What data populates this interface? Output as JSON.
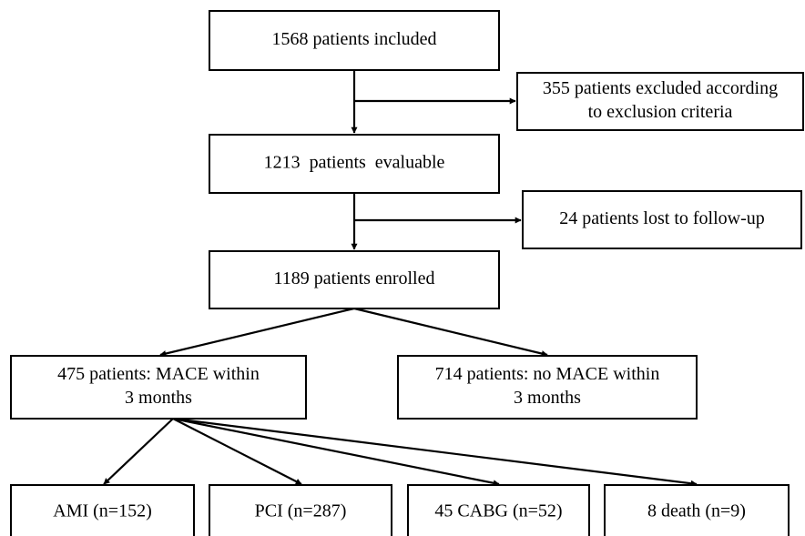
{
  "nodes": [
    {
      "lines": [
        "1568 patients included"
      ]
    },
    {
      "lines": [
        "355 patients excluded according",
        "to exclusion criteria"
      ]
    },
    {
      "lines": [
        "1213  patients  evaluable"
      ]
    },
    {
      "lines": [
        "24 patients lost to follow-up"
      ]
    },
    {
      "lines": [
        "1189 patients enrolled"
      ]
    },
    {
      "lines": [
        "475 patients: MACE within",
        "3 months"
      ]
    },
    {
      "lines": [
        "714 patients: no MACE within",
        "3 months"
      ]
    },
    {
      "lines": [
        "AMI (n=152)"
      ]
    },
    {
      "lines": [
        "PCI (n=287)"
      ]
    },
    {
      "lines": [
        "45 CABG (n=52)"
      ]
    },
    {
      "lines": [
        "8 death (n=9)"
      ]
    }
  ]
}
